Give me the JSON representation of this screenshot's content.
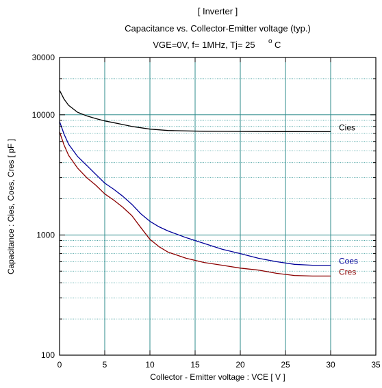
{
  "chart_data": {
    "type": "line",
    "title_lines": [
      "[ Inverter ]",
      "Capacitance  vs.  Collector-Emitter voltage  (typ.)",
      "VGE=0V,  f= 1MHz,  Tj= 25"
    ],
    "title_degree_mark": "o",
    "title_unit": "C",
    "xlabel": "Collector - Emitter voltage  :  VCE  [ V ]",
    "ylabel": "Capacitance  :  Cies, Coes, Cres  [ pF ]",
    "xlim": [
      0,
      35
    ],
    "ylim": [
      100,
      30000
    ],
    "y_scale": "log",
    "x_ticks": [
      "0",
      "5",
      "10",
      "15",
      "20",
      "25",
      "30",
      "35"
    ],
    "y_ticks": [
      "100",
      "1000",
      "10000",
      "30000"
    ],
    "grid": true,
    "series": [
      {
        "name": "Cies",
        "color": "#000000",
        "x": [
          0,
          0.5,
          1,
          2,
          3,
          4,
          5,
          6,
          7,
          8,
          9,
          10,
          12,
          14,
          16,
          18,
          20,
          22,
          24,
          26,
          28,
          30
        ],
        "y": [
          16000,
          13500,
          12000,
          10500,
          9800,
          9300,
          8900,
          8600,
          8300,
          8000,
          7800,
          7600,
          7400,
          7350,
          7300,
          7280,
          7270,
          7260,
          7250,
          7250,
          7240,
          7240
        ]
      },
      {
        "name": "Coes",
        "color": "#000099",
        "x": [
          0,
          0.5,
          1,
          2,
          3,
          4,
          5,
          6,
          7,
          8,
          9,
          10,
          11,
          12,
          14,
          16,
          18,
          20,
          22,
          24,
          26,
          28,
          30
        ],
        "y": [
          8800,
          6900,
          5700,
          4500,
          3800,
          3200,
          2700,
          2400,
          2100,
          1800,
          1500,
          1300,
          1170,
          1080,
          950,
          850,
          760,
          700,
          640,
          600,
          570,
          560,
          560
        ]
      },
      {
        "name": "Cres",
        "color": "#8b0000",
        "x": [
          0,
          0.5,
          1,
          2,
          3,
          4,
          5,
          6,
          7,
          8,
          9,
          10,
          11,
          12,
          14,
          16,
          18,
          20,
          22,
          24,
          26,
          28,
          30
        ],
        "y": [
          7200,
          5600,
          4600,
          3600,
          3000,
          2600,
          2200,
          1950,
          1700,
          1450,
          1150,
          920,
          800,
          720,
          640,
          590,
          560,
          530,
          510,
          480,
          460,
          455,
          455
        ]
      }
    ]
  }
}
